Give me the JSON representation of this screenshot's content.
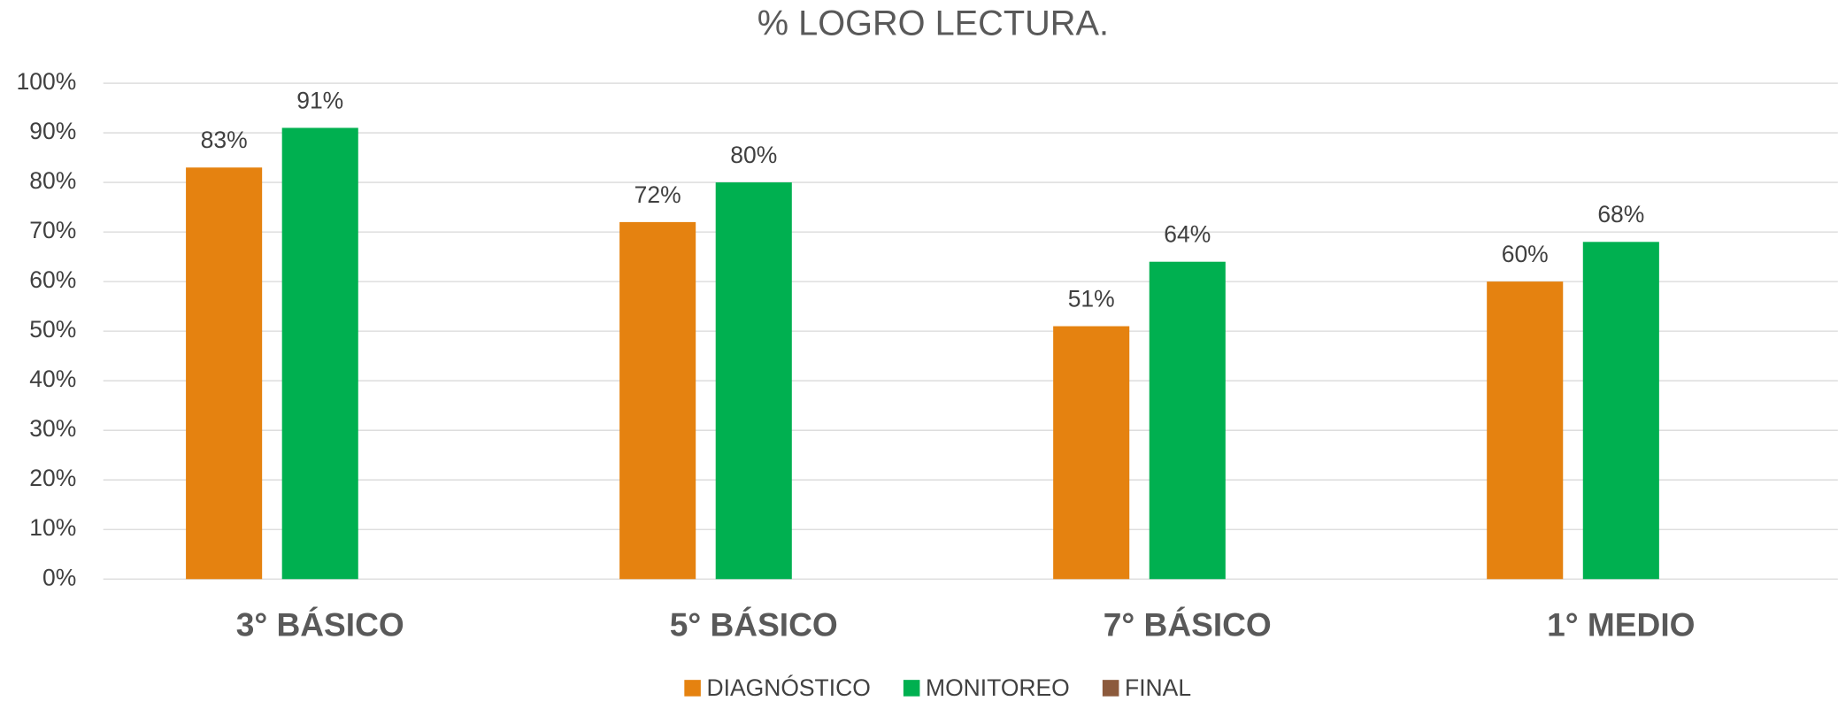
{
  "chart_data": {
    "type": "bar",
    "title": "% LOGRO LECTURA.",
    "categories": [
      "3° BÁSICO",
      "5° BÁSICO",
      "7° BÁSICO",
      "1° MEDIO"
    ],
    "series": [
      {
        "name": "DIAGNÓSTICO",
        "color": "#e58210",
        "values": [
          83,
          72,
          51,
          60
        ],
        "value_labels": [
          "83%",
          "72%",
          "51%",
          "60%"
        ]
      },
      {
        "name": "MONITOREO",
        "color": "#00b050",
        "values": [
          91,
          80,
          64,
          68
        ],
        "value_labels": [
          "91%",
          "80%",
          "64%",
          "68%"
        ]
      },
      {
        "name": "FINAL",
        "color": "#8c5a3c",
        "values": [
          null,
          null,
          null,
          null
        ]
      }
    ],
    "ylim": [
      0,
      100
    ],
    "yticks": [
      {
        "value": 0,
        "label": "0%"
      },
      {
        "value": 10,
        "label": "10%"
      },
      {
        "value": 20,
        "label": "20%"
      },
      {
        "value": 30,
        "label": "30%"
      },
      {
        "value": 40,
        "label": "40%"
      },
      {
        "value": 50,
        "label": "50%"
      },
      {
        "value": 60,
        "label": "60%"
      },
      {
        "value": 70,
        "label": "70%"
      },
      {
        "value": 80,
        "label": "80%"
      },
      {
        "value": 90,
        "label": "90%"
      },
      {
        "value": 100,
        "label": "100%"
      }
    ],
    "grid": true,
    "legend": "bottom"
  }
}
